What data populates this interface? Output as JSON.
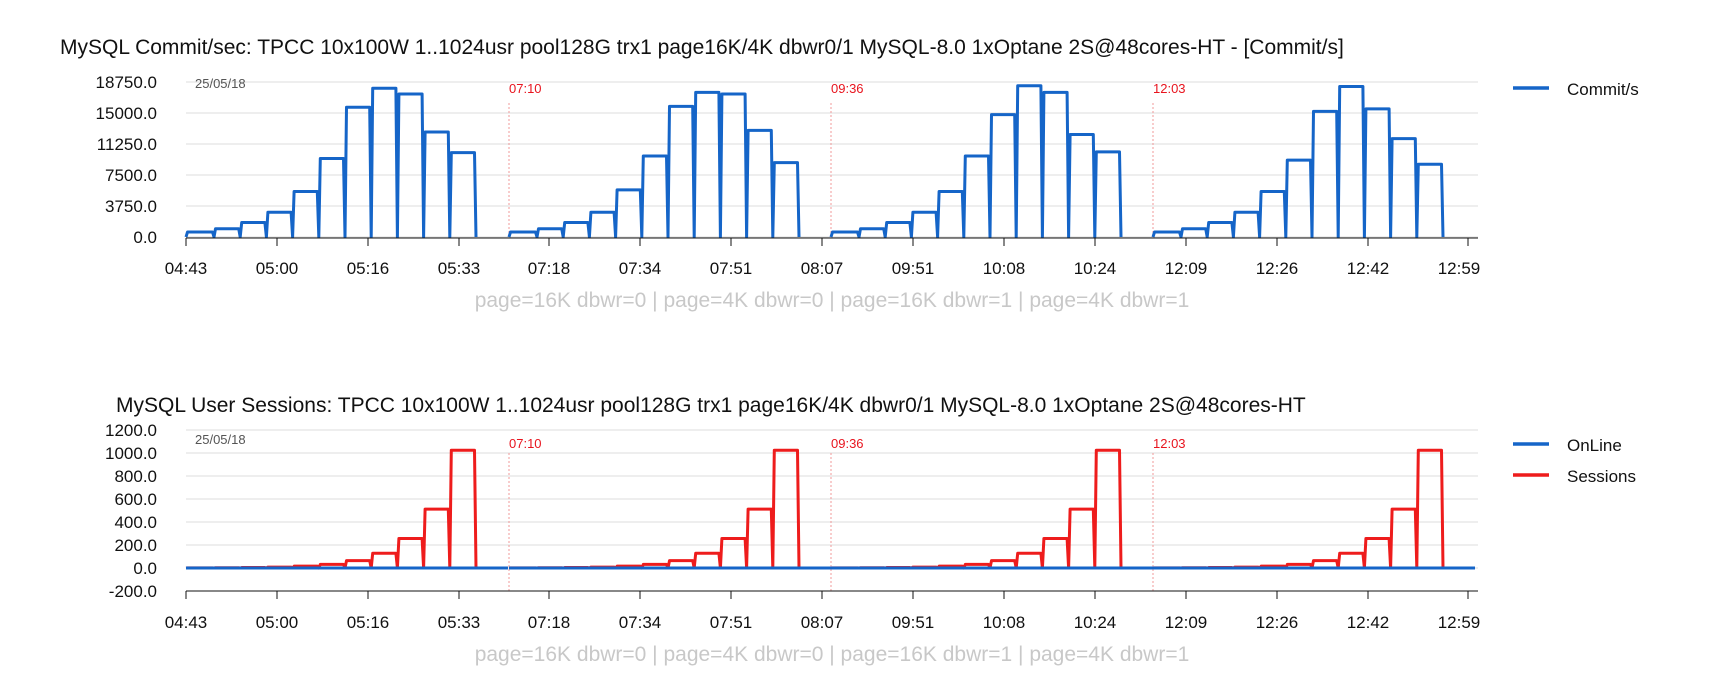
{
  "colors": {
    "commit": "#1565c8",
    "online": "#1565c8",
    "sessions": "#ee1c1c",
    "marker": "#e8141e"
  },
  "chart_data": [
    {
      "type": "line",
      "title": "MySQL Commit/sec: TPCC 10x100W 1..1024usr pool128G trx1 page16K/4K dbwr0/1 MySQL-8.0 1xOptane 2S@48cores-HT - [Commit/s]",
      "date_label": "25/05/18",
      "xlabel": "page=16K dbwr=0 | page=4K dbwr=0 | page=16K dbwr=1 | page=4K dbwr=1",
      "x_ticks": [
        "04:43",
        "05:00",
        "05:16",
        "05:33",
        "07:18",
        "07:34",
        "07:51",
        "08:07",
        "09:51",
        "10:08",
        "10:24",
        "12:09",
        "12:26",
        "12:42",
        "12:59"
      ],
      "y_ticks": [
        "18750.0",
        "15000.0",
        "11250.0",
        "7500.0",
        "3750.0",
        "0.0"
      ],
      "ylim": [
        0,
        18750
      ],
      "markers": [
        "07:10",
        "09:36",
        "12:03"
      ],
      "legend": [
        "Commit/s"
      ],
      "series": [
        {
          "name": "Commit/s",
          "runs": [
            [
              600,
              1000,
              1750,
              3000,
              5500,
              9500,
              15700,
              18000,
              17300,
              12700,
              10200
            ],
            [
              600,
              1000,
              1750,
              3000,
              5700,
              9800,
              15800,
              17500,
              17300,
              12900,
              9000
            ],
            [
              600,
              1000,
              1750,
              3000,
              5500,
              9800,
              14800,
              18300,
              17500,
              12400,
              10300
            ],
            [
              600,
              1000,
              1750,
              3000,
              5500,
              9300,
              15200,
              18200,
              15500,
              11900,
              8800
            ]
          ]
        }
      ]
    },
    {
      "type": "line",
      "title": "MySQL User Sessions: TPCC 10x100W 1..1024usr pool128G trx1 page16K/4K dbwr0/1 MySQL-8.0 1xOptane 2S@48cores-HT",
      "date_label": "25/05/18",
      "xlabel": "page=16K dbwr=0 | page=4K dbwr=0 | page=16K dbwr=1 | page=4K dbwr=1",
      "x_ticks": [
        "04:43",
        "05:00",
        "05:16",
        "05:33",
        "07:18",
        "07:34",
        "07:51",
        "08:07",
        "09:51",
        "10:08",
        "10:24",
        "12:09",
        "12:26",
        "12:42",
        "12:59"
      ],
      "y_ticks": [
        "1200.0",
        "1000.0",
        "800.0",
        "600.0",
        "400.0",
        "200.0",
        "0.0",
        "-200.0"
      ],
      "ylim": [
        -200,
        1200
      ],
      "markers": [
        "07:10",
        "09:36",
        "12:03"
      ],
      "legend": [
        "OnLine",
        "Sessions"
      ],
      "series": [
        {
          "name": "OnLine",
          "runs": [
            [
              0
            ],
            [
              0
            ],
            [
              0
            ],
            [
              0
            ]
          ]
        },
        {
          "name": "Sessions",
          "runs": [
            [
              1,
              2,
              4,
              8,
              16,
              32,
              64,
              128,
              256,
              512,
              1024
            ],
            [
              1,
              2,
              4,
              8,
              16,
              32,
              64,
              128,
              256,
              512,
              1024
            ],
            [
              1,
              2,
              4,
              8,
              16,
              32,
              64,
              128,
              256,
              512,
              1024
            ],
            [
              1,
              2,
              4,
              8,
              16,
              32,
              64,
              128,
              256,
              512,
              1024
            ]
          ]
        }
      ]
    }
  ]
}
